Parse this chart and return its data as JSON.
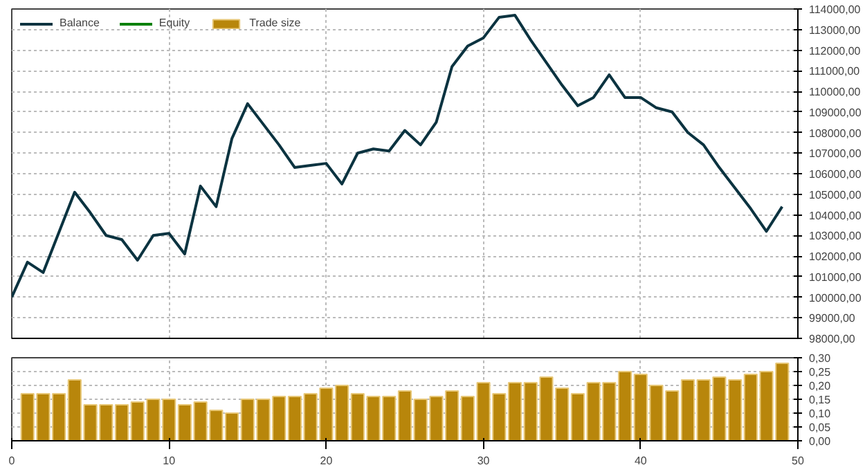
{
  "chart_data": [
    {
      "type": "line",
      "x": [
        0,
        1,
        2,
        3,
        4,
        5,
        6,
        7,
        8,
        9,
        10,
        11,
        12,
        13,
        14,
        15,
        16,
        17,
        18,
        19,
        20,
        21,
        22,
        23,
        24,
        25,
        26,
        27,
        28,
        29,
        30,
        31,
        32,
        33,
        34,
        35,
        36,
        37,
        38,
        39,
        40,
        41,
        42,
        43,
        44,
        45,
        46,
        47,
        48,
        49
      ],
      "series": [
        {
          "name": "Balance",
          "color": "#0b3340",
          "values": [
            100000,
            101700,
            101200,
            103150,
            105100,
            104100,
            103000,
            102800,
            101800,
            103000,
            103100,
            102100,
            105400,
            104400,
            107700,
            109400,
            108400,
            107400,
            106300,
            106400,
            106500,
            105500,
            107000,
            107200,
            107100,
            108100,
            107400,
            108500,
            111200,
            112200,
            112600,
            113600,
            113700,
            112500,
            111400,
            110300,
            109300,
            109700,
            110800,
            109700,
            109700,
            109200,
            109000,
            108000,
            107400,
            106300,
            105300,
            104300,
            103200,
            104400
          ]
        },
        {
          "name": "Equity",
          "color": "#008000",
          "values": [
            null,
            null,
            null,
            null,
            null,
            null,
            null,
            null,
            null,
            null,
            null,
            null,
            null,
            null,
            null,
            null,
            null,
            null,
            null,
            null,
            null,
            null,
            null,
            null,
            null,
            null,
            null,
            null,
            null,
            null,
            null,
            null,
            null,
            null,
            null,
            null,
            null,
            null,
            null,
            null,
            null,
            null,
            null,
            null,
            null,
            null,
            null,
            null,
            null,
            null
          ]
        }
      ],
      "xlim": [
        0,
        50
      ],
      "xticks": [
        0,
        10,
        20,
        30,
        40,
        50
      ],
      "ylim": [
        98000,
        114000
      ],
      "yticks": [
        {
          "value": 98000,
          "label": "98000,00"
        },
        {
          "value": 99000,
          "label": "99000,00"
        },
        {
          "value": 100000,
          "label": "100000,00"
        },
        {
          "value": 101000,
          "label": "101000,00"
        },
        {
          "value": 102000,
          "label": "102000,00"
        },
        {
          "value": 103000,
          "label": "103000,00"
        },
        {
          "value": 104000,
          "label": "104000,00"
        },
        {
          "value": 105000,
          "label": "105000,00"
        },
        {
          "value": 106000,
          "label": "106000,00"
        },
        {
          "value": 107000,
          "label": "107000,00"
        },
        {
          "value": 108000,
          "label": "108000,00"
        },
        {
          "value": 109000,
          "label": "109000,00"
        },
        {
          "value": 110000,
          "label": "110000,00"
        },
        {
          "value": 111000,
          "label": "111000,00"
        },
        {
          "value": 112000,
          "label": "112000,00"
        },
        {
          "value": 113000,
          "label": "113000,00"
        },
        {
          "value": 114000,
          "label": "114000,00"
        }
      ],
      "tick_labels": "y",
      "grid": true,
      "legend": "top left",
      "marker": "none",
      "line_style": "solid"
    },
    {
      "type": "bar",
      "x": [
        1,
        2,
        3,
        4,
        5,
        6,
        7,
        8,
        9,
        10,
        11,
        12,
        13,
        14,
        15,
        16,
        17,
        18,
        19,
        20,
        21,
        22,
        23,
        24,
        25,
        26,
        27,
        28,
        29,
        30,
        31,
        32,
        33,
        34,
        35,
        36,
        37,
        38,
        39,
        40,
        41,
        42,
        43,
        44,
        45,
        46,
        47,
        48,
        49
      ],
      "series": [
        {
          "name": "Trade size",
          "color": "#b8860b",
          "values": [
            0.17,
            0.17,
            0.17,
            0.22,
            0.13,
            0.13,
            0.13,
            0.14,
            0.15,
            0.15,
            0.13,
            0.14,
            0.11,
            0.1,
            0.15,
            0.15,
            0.16,
            0.16,
            0.17,
            0.19,
            0.2,
            0.17,
            0.16,
            0.16,
            0.18,
            0.15,
            0.16,
            0.18,
            0.16,
            0.21,
            0.17,
            0.21,
            0.21,
            0.23,
            0.19,
            0.17,
            0.21,
            0.21,
            0.25,
            0.24,
            0.2,
            0.18,
            0.22,
            0.22,
            0.23,
            0.22,
            0.24,
            0.25,
            0.28
          ]
        }
      ],
      "xlim": [
        0,
        50
      ],
      "xticks": [
        0,
        10,
        20,
        30,
        40,
        50
      ],
      "ylim": [
        0,
        0.3
      ],
      "yticks": [
        {
          "value": 0,
          "label": "0,00"
        },
        {
          "value": 0.05,
          "label": "0,05"
        },
        {
          "value": 0.1,
          "label": "0,10"
        },
        {
          "value": 0.15,
          "label": "0,15"
        },
        {
          "value": 0.2,
          "label": "0,20"
        },
        {
          "value": 0.25,
          "label": "0,25"
        },
        {
          "value": 0.3,
          "label": "0,30"
        }
      ],
      "grid": true,
      "legend": "top left"
    }
  ]
}
